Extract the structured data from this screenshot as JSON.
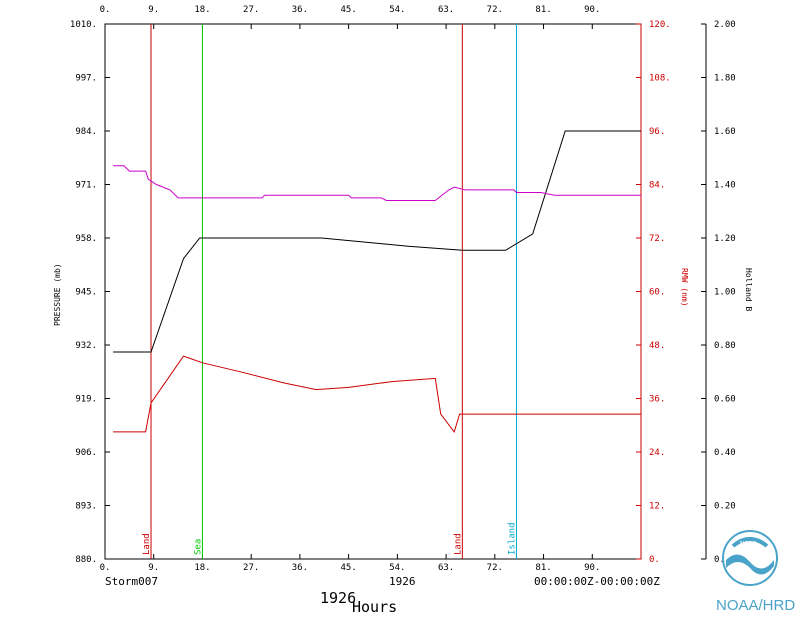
{
  "chart_data": {
    "type": "line",
    "title": "1926",
    "footer_left": "Storm007",
    "footer_center": "1926",
    "footer_right": "00:00:00Z-00:00:00Z",
    "xlabel": "Hours",
    "ylabel_left": "PRESSURE (mb)",
    "ylabel_right1": "RMW (nm)",
    "ylabel_right2": "Holland B",
    "xlim": [
      0,
      99
    ],
    "ylim_left": [
      880,
      1010
    ],
    "ylim_right1": [
      0,
      120
    ],
    "ylim_right2": [
      0,
      2
    ],
    "x_ticks": [
      "0.",
      "9.",
      "18.",
      "27.",
      "36.",
      "45.",
      "54.",
      "63.",
      "72.",
      "81.",
      "90."
    ],
    "x_tick_values": [
      0,
      9,
      18,
      27,
      36,
      45,
      54,
      63,
      72,
      81,
      90
    ],
    "y_left_ticks": [
      "880.",
      "893.",
      "906.",
      "919.",
      "932.",
      "945.",
      "958.",
      "971.",
      "984.",
      "997.",
      "1010."
    ],
    "y_left_values": [
      880,
      893,
      906,
      919,
      932,
      945,
      958,
      971,
      984,
      997,
      1010
    ],
    "y_right1_ticks": [
      "0.",
      "12.",
      "24.",
      "36.",
      "48.",
      "60.",
      "72.",
      "84.",
      "96.",
      "108.",
      "120."
    ],
    "y_right1_values": [
      0,
      12,
      24,
      36,
      48,
      60,
      72,
      84,
      96,
      108,
      120
    ],
    "y_right2_ticks": [
      "0.00",
      "0.20",
      "0.40",
      "0.60",
      "0.80",
      "1.00",
      "1.20",
      "1.40",
      "1.60",
      "1.80",
      "2.00"
    ],
    "y_right2_values": [
      0,
      0.2,
      0.4,
      0.6,
      0.8,
      1.0,
      1.2,
      1.4,
      1.6,
      1.8,
      2.0
    ],
    "series": [
      {
        "axis": "left",
        "color": "#000000",
        "x": [
          1.5,
          8.5,
          14.5,
          17.5,
          26,
          40,
          56,
          66,
          74,
          79,
          85,
          99
        ],
        "y": [
          930.3,
          930.3,
          953.0,
          958.0,
          958.0,
          958.0,
          956.0,
          955.0,
          955.0,
          959.0,
          984.0,
          984.0
        ]
      },
      {
        "axis": "right1",
        "color": "#cc0000",
        "x": [
          1.5,
          7.5,
          8.5,
          14.5,
          18,
          25,
          33,
          39,
          45,
          53,
          61,
          62,
          64.5,
          65.5,
          99
        ],
        "y": [
          28.5,
          28.5,
          35,
          45.5,
          44,
          42,
          39.5,
          38,
          38.5,
          39.8,
          40.5,
          32.5,
          28.5,
          32.5,
          32.5
        ]
      },
      {
        "axis": "right2",
        "color": "#cc00cc",
        "x": [
          1.5,
          3.5,
          4.5,
          7.5,
          8,
          9.5,
          12,
          13.5,
          15.5,
          29,
          29.5,
          45,
          45.5,
          51,
          52,
          61,
          63.5,
          64.5,
          66.5,
          70.5,
          75.5,
          76,
          80.5,
          83,
          99
        ],
        "y": [
          1.47,
          1.47,
          1.45,
          1.45,
          1.42,
          1.4,
          1.38,
          1.35,
          1.35,
          1.35,
          1.36,
          1.36,
          1.35,
          1.35,
          1.34,
          1.34,
          1.38,
          1.39,
          1.38,
          1.38,
          1.38,
          1.37,
          1.37,
          1.36,
          1.36
        ]
      }
    ],
    "events": [
      {
        "x": 8.5,
        "label": "Land",
        "color": "#cc0000"
      },
      {
        "x": 18.0,
        "label": "Sea",
        "color": "#00cc00"
      },
      {
        "x": 66.0,
        "label": "Land",
        "color": "#cc0000"
      },
      {
        "x": 76.0,
        "label": "Island",
        "color": "#00aacc"
      }
    ],
    "colors": {
      "frame": "#000000",
      "rmw_axis": "#cc0000",
      "logo": "#4aa3c8"
    },
    "logo_text": "NOAA",
    "credit": "NOAA/HRD"
  }
}
